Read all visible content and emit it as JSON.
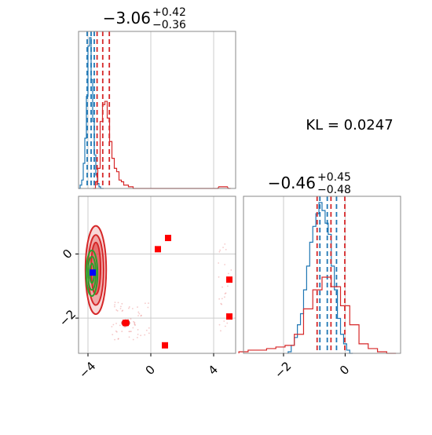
{
  "chart_data": [
    {
      "type": "histogram",
      "panel": "marginal-x",
      "title": {
        "median": "−3.06",
        "plus": "+0.42",
        "minus": "−0.36"
      },
      "xlim": [
        -4.6,
        5.4
      ],
      "grid": true,
      "xticks": [
        -4,
        0,
        4
      ],
      "series": [
        {
          "color": "#1f77b4",
          "bins": [
            -4.55,
            -4.45,
            -4.35,
            -4.25,
            -4.15,
            -4.05,
            -3.95,
            -3.85,
            -3.75,
            -3.65,
            -3.55,
            -3.45,
            -3.35,
            -3.25,
            -3.15,
            -3.05
          ],
          "values": [
            0.0,
            0.02,
            0.05,
            0.15,
            0.3,
            0.55,
            0.85,
            0.9,
            0.65,
            0.4,
            0.2,
            0.08,
            0.03,
            0.01,
            0.0,
            0.0
          ],
          "quantiles": [
            -4.05,
            -3.8,
            -3.6
          ]
        },
        {
          "color": "#d62728",
          "bins": [
            -3.6,
            -3.45,
            -3.3,
            -3.15,
            -3.0,
            -2.85,
            -2.7,
            -2.55,
            -2.4,
            -2.25,
            -2.1,
            -1.95,
            -1.8,
            -1.65,
            -1.5,
            -1.35,
            -1.2,
            -1.05,
            -0.9,
            4.2,
            4.4,
            4.6,
            4.8,
            5.0
          ],
          "values": [
            0.0,
            0.04,
            0.12,
            0.4,
            0.5,
            0.52,
            0.42,
            0.28,
            0.18,
            0.12,
            0.1,
            0.05,
            0.04,
            0.02,
            0.02,
            0.01,
            0.01,
            0.0,
            0.0,
            0.0,
            0.01,
            0.01,
            0.01,
            0.0
          ],
          "quantiles": [
            -3.42,
            -3.06,
            -2.64
          ]
        }
      ]
    },
    {
      "type": "histogram",
      "panel": "marginal-y",
      "title": {
        "median": "−0.46",
        "plus": "+0.45",
        "minus": "−0.48"
      },
      "xlim": [
        -3.3,
        1.8
      ],
      "grid": true,
      "xticks": [
        -2,
        0
      ],
      "series": [
        {
          "color": "#1f77b4",
          "bins": [
            -1.8,
            -1.7,
            -1.6,
            -1.5,
            -1.4,
            -1.3,
            -1.2,
            -1.1,
            -1.0,
            -0.9,
            -0.8,
            -0.7,
            -0.6,
            -0.5,
            -0.4,
            -0.3,
            -0.2,
            -0.1,
            0.0,
            0.1,
            0.2
          ],
          "values": [
            0.01,
            0.05,
            0.1,
            0.18,
            0.25,
            0.4,
            0.55,
            0.7,
            0.8,
            0.88,
            0.95,
            0.9,
            0.82,
            0.75,
            0.55,
            0.4,
            0.22,
            0.12,
            0.06,
            0.02,
            0.0
          ],
          "quantiles": [
            -0.82,
            -0.58,
            -0.28
          ]
        },
        {
          "color": "#d62728",
          "bins": [
            -3.3,
            -3.0,
            -2.7,
            -2.4,
            -2.1,
            -1.8,
            -1.5,
            -1.2,
            -0.9,
            -0.6,
            -0.3,
            0.0,
            0.3,
            0.6,
            0.9,
            1.2,
            1.5
          ],
          "values": [
            0.01,
            0.02,
            0.02,
            0.03,
            0.04,
            0.05,
            0.12,
            0.28,
            0.4,
            0.48,
            0.42,
            0.3,
            0.18,
            0.06,
            0.03,
            0.01,
            0.0
          ],
          "quantiles": [
            -0.91,
            -0.46,
            -0.01
          ]
        }
      ]
    },
    {
      "type": "scatter",
      "panel": "joint",
      "xlim": [
        -4.6,
        5.4
      ],
      "ylim": [
        -3.1,
        1.8
      ],
      "xticks": [
        -4,
        0,
        4
      ],
      "yticks": [
        -2,
        0
      ],
      "red_markers": [
        [
          -1.6,
          -2.15
        ],
        [
          1.1,
          0.5
        ],
        [
          0.45,
          0.15
        ],
        [
          5.0,
          -0.8
        ],
        [
          5.0,
          -1.95
        ],
        [
          0.9,
          -2.85
        ]
      ],
      "blue_marker": [
        -3.7,
        -0.58
      ],
      "contours": [
        {
          "color": "#d62728",
          "center": [
            -3.5,
            -0.5
          ],
          "rx": 1.2,
          "ry": 1.45,
          "fill": "rgba(214,39,40,0.18)"
        },
        {
          "color": "#d62728",
          "center": [
            -3.5,
            -0.5
          ],
          "rx": 0.9,
          "ry": 1.15,
          "fill": "rgba(214,39,40,0.28)"
        },
        {
          "color": "#d62728",
          "center": [
            -3.5,
            -0.45
          ],
          "rx": 0.55,
          "ry": 0.85,
          "fill": "rgba(214,39,40,0.45)"
        },
        {
          "color": "#2ca02c",
          "center": [
            -3.75,
            -0.6
          ],
          "rx": 0.65,
          "ry": 0.75,
          "fill": "none"
        },
        {
          "color": "#2ca02c",
          "center": [
            -3.75,
            -0.6
          ],
          "rx": 0.45,
          "ry": 0.55,
          "fill": "none"
        },
        {
          "color": "#2ca02c",
          "center": [
            -3.75,
            -0.6
          ],
          "rx": 0.25,
          "ry": 0.32,
          "fill": "none"
        }
      ]
    }
  ],
  "kl_label": "KL = 0.0247"
}
